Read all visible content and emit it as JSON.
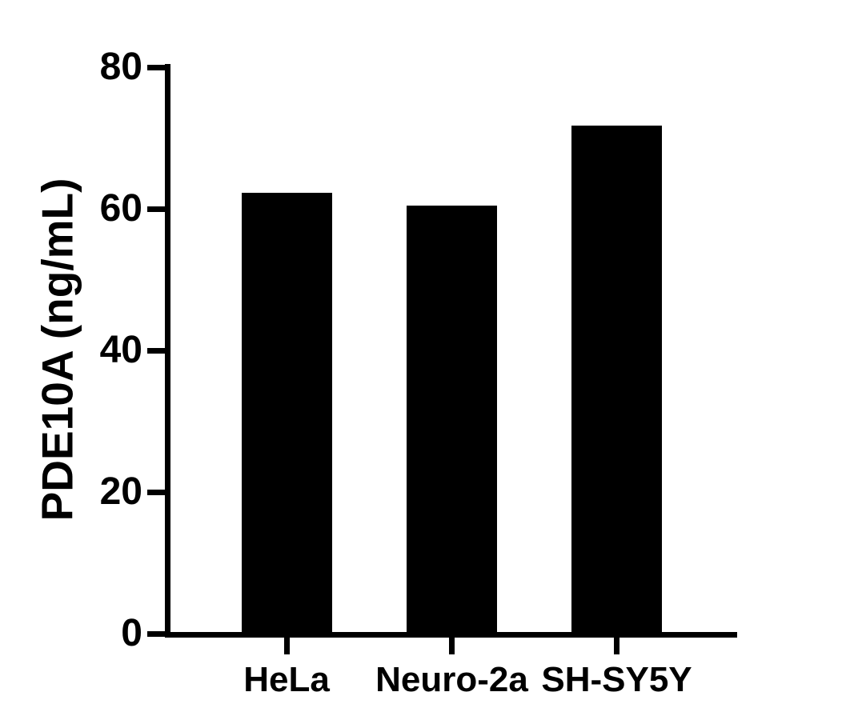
{
  "figure": {
    "background": "#ffffff",
    "foreground": "#000000"
  },
  "chart_data": {
    "type": "bar",
    "title": "",
    "xlabel": "",
    "ylabel": "PDE10A (ng/mL)",
    "categories": [
      "HeLa",
      "Neuro-2a",
      "SH-SY5Y"
    ],
    "values": [
      62.3,
      60.5,
      71.7
    ],
    "ylim": [
      0,
      80
    ],
    "yticks": [
      0,
      20,
      40,
      60,
      80
    ],
    "bar_color": "#000000",
    "axis_color": "#000000",
    "grid": false,
    "legend": "none"
  }
}
